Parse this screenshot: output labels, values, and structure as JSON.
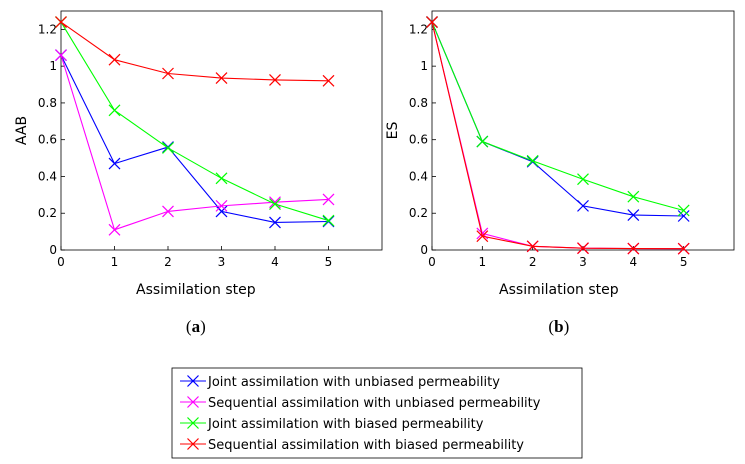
{
  "chart_data": [
    {
      "type": "line",
      "panel_label": "a",
      "ylabel": "AAB",
      "xlabel": "Assimilation step",
      "xlim": [
        0,
        6
      ],
      "ylim": [
        0,
        1.3
      ],
      "xticks": [
        0,
        1,
        2,
        3,
        4,
        5
      ],
      "yticks": [
        0,
        0.2,
        0.4,
        0.6,
        0.8,
        1,
        1.2
      ],
      "ytick_labels": [
        "0",
        "0.2",
        "0.4",
        "0.6",
        "0.8",
        "1",
        "1.2"
      ],
      "grid": false,
      "x": [
        0,
        1,
        2,
        3,
        4,
        5
      ],
      "series": [
        {
          "name": "Joint assimilation with unbiased permeability",
          "color": "#0000ff",
          "values": [
            1.06,
            0.47,
            0.56,
            0.21,
            0.15,
            0.155
          ]
        },
        {
          "name": "Sequential assimilation with unbiased permeability",
          "color": "#ff00ff",
          "values": [
            1.06,
            0.11,
            0.21,
            0.24,
            0.26,
            0.275
          ]
        },
        {
          "name": "Joint assimilation with biased permeability",
          "color": "#00ff00",
          "values": [
            1.24,
            0.76,
            0.555,
            0.39,
            0.25,
            0.16
          ]
        },
        {
          "name": "Sequential assimilation with biased permeability",
          "color": "#ff0000",
          "values": [
            1.24,
            1.035,
            0.96,
            0.935,
            0.925,
            0.92
          ]
        }
      ]
    },
    {
      "type": "line",
      "panel_label": "b",
      "ylabel": "ES",
      "xlabel": "Assimilation step",
      "xlim": [
        0,
        6
      ],
      "ylim": [
        0,
        1.3
      ],
      "xticks": [
        0,
        1,
        2,
        3,
        4,
        5
      ],
      "yticks": [
        0,
        0.2,
        0.4,
        0.6,
        0.8,
        1,
        1.2
      ],
      "ytick_labels": [
        "0",
        "0.2",
        "0.4",
        "0.6",
        "0.8",
        "1",
        "1.2"
      ],
      "grid": false,
      "x": [
        0,
        1,
        2,
        3,
        4,
        5
      ],
      "series": [
        {
          "name": "Joint assimilation with unbiased permeability",
          "color": "#0000ff",
          "values": [
            1.24,
            0.59,
            0.48,
            0.24,
            0.19,
            0.185
          ]
        },
        {
          "name": "Sequential assimilation with unbiased permeability",
          "color": "#ff00ff",
          "values": [
            1.24,
            0.09,
            0.02,
            0.01,
            0.008,
            0.007
          ]
        },
        {
          "name": "Joint assimilation with biased permeability",
          "color": "#00ff00",
          "values": [
            1.24,
            0.59,
            0.485,
            0.385,
            0.29,
            0.215
          ]
        },
        {
          "name": "Sequential assimilation with biased permeability",
          "color": "#ff0000",
          "values": [
            1.24,
            0.075,
            0.02,
            0.01,
            0.008,
            0.007
          ]
        }
      ]
    }
  ],
  "legend": {
    "placement": "bottom-center",
    "entries": [
      {
        "label": "Joint assimilation with unbiased permeability",
        "color": "#0000ff"
      },
      {
        "label": "Sequential assimilation with unbiased permeability",
        "color": "#ff00ff"
      },
      {
        "label": "Joint assimilation with biased permeability",
        "color": "#00ff00"
      },
      {
        "label": "Sequential assimilation with biased permeability",
        "color": "#ff0000"
      }
    ]
  }
}
